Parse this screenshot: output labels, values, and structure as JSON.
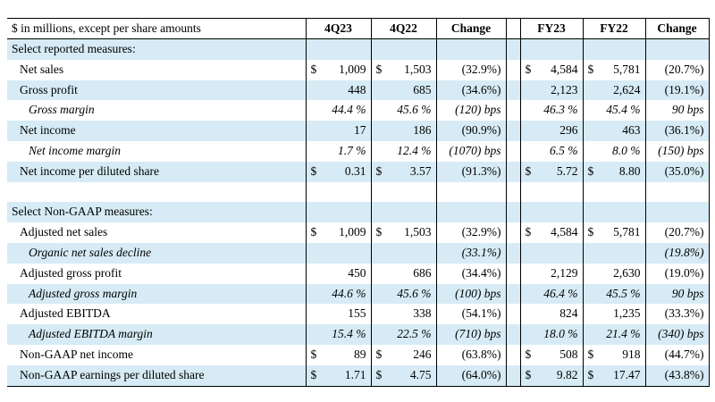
{
  "header": {
    "label": "$ in millions, except per share amounts",
    "columns": [
      "4Q23",
      "4Q22",
      "Change",
      "FY23",
      "FY22",
      "Change"
    ]
  },
  "rows": [
    {
      "kind": "section",
      "label": "Select reported measures:",
      "cells": [
        "",
        "",
        "",
        "",
        "",
        ""
      ]
    },
    {
      "kind": "item",
      "label": "Net sales",
      "cells": [
        "1,009",
        "1,503",
        "(32.9%)",
        "4,584",
        "5,781",
        "(20.7%)"
      ],
      "dollar": [
        true,
        true,
        false,
        true,
        true,
        false
      ]
    },
    {
      "kind": "item",
      "label": "Gross profit",
      "cells": [
        "448",
        "685",
        "(34.6%)",
        "2,123",
        "2,624",
        "(19.1%)"
      ],
      "dollar": [
        false,
        false,
        false,
        false,
        false,
        false
      ]
    },
    {
      "kind": "sub",
      "label": "Gross margin",
      "cells": [
        "44.4 %",
        "45.6 %",
        "(120) bps",
        "46.3 %",
        "45.4 %",
        "90 bps"
      ],
      "dollar": [
        false,
        false,
        false,
        false,
        false,
        false
      ]
    },
    {
      "kind": "item",
      "label": "Net income",
      "cells": [
        "17",
        "186",
        "(90.9%)",
        "296",
        "463",
        "(36.1%)"
      ],
      "dollar": [
        false,
        false,
        false,
        false,
        false,
        false
      ]
    },
    {
      "kind": "sub",
      "label": "Net income margin",
      "cells": [
        "1.7 %",
        "12.4 %",
        "(1070) bps",
        "6.5 %",
        "8.0 %",
        "(150) bps"
      ],
      "dollar": [
        false,
        false,
        false,
        false,
        false,
        false
      ]
    },
    {
      "kind": "item",
      "label": "Net income per diluted share",
      "cells": [
        "0.31",
        "3.57",
        "(91.3%)",
        "5.72",
        "8.80",
        "(35.0%)"
      ],
      "dollar": [
        true,
        true,
        false,
        true,
        true,
        false
      ]
    },
    {
      "kind": "blank",
      "label": "",
      "cells": [
        "",
        "",
        "",
        "",
        "",
        ""
      ]
    },
    {
      "kind": "section",
      "label": "Select Non-GAAP measures:",
      "cells": [
        "",
        "",
        "",
        "",
        "",
        ""
      ]
    },
    {
      "kind": "item",
      "label": "Adjusted net sales",
      "cells": [
        "1,009",
        "1,503",
        "(32.9%)",
        "4,584",
        "5,781",
        "(20.7%)"
      ],
      "dollar": [
        true,
        true,
        false,
        true,
        true,
        false
      ]
    },
    {
      "kind": "sub",
      "label": "Organic net sales decline",
      "cells": [
        "",
        "",
        "(33.1%)",
        "",
        "",
        "(19.8%)"
      ],
      "dollar": [
        false,
        false,
        false,
        false,
        false,
        false
      ]
    },
    {
      "kind": "item",
      "label": "Adjusted gross profit",
      "cells": [
        "450",
        "686",
        "(34.4%)",
        "2,129",
        "2,630",
        "(19.0%)"
      ],
      "dollar": [
        false,
        false,
        false,
        false,
        false,
        false
      ]
    },
    {
      "kind": "sub",
      "label": "Adjusted gross margin",
      "cells": [
        "44.6 %",
        "45.6 %",
        "(100) bps",
        "46.4 %",
        "45.5 %",
        "90 bps"
      ],
      "dollar": [
        false,
        false,
        false,
        false,
        false,
        false
      ]
    },
    {
      "kind": "item",
      "label": "Adjusted EBITDA",
      "cells": [
        "155",
        "338",
        "(54.1%)",
        "824",
        "1,235",
        "(33.3%)"
      ],
      "dollar": [
        false,
        false,
        false,
        false,
        false,
        false
      ]
    },
    {
      "kind": "sub",
      "label": "Adjusted EBITDA margin",
      "cells": [
        "15.4 %",
        "22.5 %",
        "(710) bps",
        "18.0 %",
        "21.4 %",
        "(340) bps"
      ],
      "dollar": [
        false,
        false,
        false,
        false,
        false,
        false
      ]
    },
    {
      "kind": "item",
      "label": "Non-GAAP net income",
      "cells": [
        "89",
        "246",
        "(63.8%)",
        "508",
        "918",
        "(44.7%)"
      ],
      "dollar": [
        true,
        true,
        false,
        true,
        true,
        false
      ]
    },
    {
      "kind": "item",
      "label": "Non-GAAP earnings per diluted share",
      "cells": [
        "1.71",
        "4.75",
        "(64.0%)",
        "9.82",
        "17.47",
        "(43.8%)"
      ],
      "dollar": [
        true,
        true,
        false,
        true,
        true,
        false
      ]
    }
  ],
  "currency_symbol": "$",
  "colors": {
    "row_shade": "#d6ebf5",
    "border": "#000000"
  }
}
